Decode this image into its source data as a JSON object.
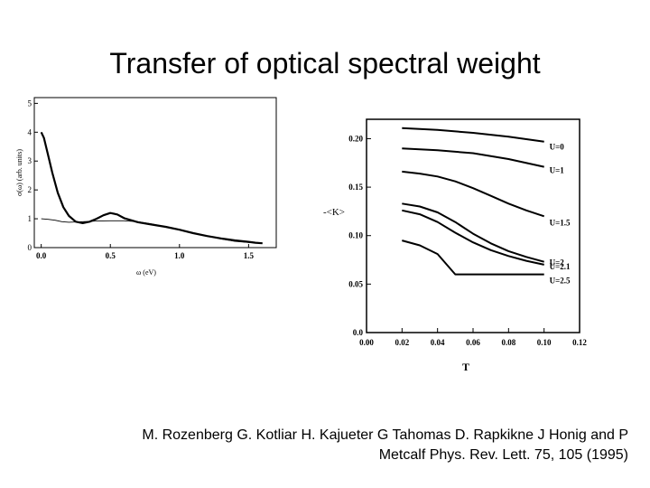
{
  "slide": {
    "title": "Transfer of optical  spectral weight",
    "citation_line1": "M. Rozenberg G. Kotliar H. Kajueter G Tahomas D. Rapkikne J Honig and P",
    "citation_line2": "Metcalf Phys. Rev. Lett. 75, 105 (1995)"
  },
  "chart_data": [
    {
      "type": "line",
      "title": "",
      "xlabel": "ω (eV)",
      "ylabel": "σ(ω) (arb. units)",
      "xlim": [
        -0.05,
        1.7
      ],
      "ylim": [
        0,
        5.2
      ],
      "x_ticks": [
        0.0,
        0.5,
        1.0,
        1.5
      ],
      "x_tick_labels": [
        "0.0",
        "0.5",
        "1.0",
        "1.5"
      ],
      "y_ticks": [
        0,
        1,
        2,
        3,
        4,
        5
      ],
      "y_tick_labels": [
        "0",
        "1",
        "2",
        "3",
        "4",
        "5"
      ],
      "grid": false,
      "series": [
        {
          "style": "thick",
          "x": [
            0.0,
            0.02,
            0.05,
            0.08,
            0.12,
            0.16,
            0.2,
            0.25,
            0.3,
            0.35,
            0.4,
            0.45,
            0.5,
            0.55,
            0.6,
            0.7,
            0.8,
            0.9,
            1.0,
            1.1,
            1.2,
            1.3,
            1.4,
            1.5,
            1.55,
            1.6
          ],
          "y": [
            4.0,
            3.8,
            3.2,
            2.6,
            1.9,
            1.4,
            1.1,
            0.9,
            0.85,
            0.9,
            1.0,
            1.12,
            1.2,
            1.15,
            1.02,
            0.88,
            0.8,
            0.72,
            0.62,
            0.5,
            0.4,
            0.32,
            0.25,
            0.2,
            0.17,
            0.15
          ]
        },
        {
          "style": "thin",
          "x": [
            0.0,
            0.05,
            0.1,
            0.15,
            0.2,
            0.3,
            0.4,
            0.5,
            0.6,
            0.7,
            0.8,
            0.9,
            1.0,
            1.1,
            1.2,
            1.3,
            1.4,
            1.5,
            1.6
          ],
          "y": [
            1.0,
            0.98,
            0.95,
            0.9,
            0.88,
            0.9,
            0.92,
            0.93,
            0.93,
            0.9,
            0.82,
            0.72,
            0.62,
            0.5,
            0.4,
            0.3,
            0.22,
            0.18,
            0.15
          ]
        }
      ]
    },
    {
      "type": "line",
      "title": "",
      "xlabel": "T",
      "ylabel": "-<K>",
      "xlim": [
        0.0,
        0.12
      ],
      "ylim": [
        0.0,
        0.22
      ],
      "x_ticks": [
        0.0,
        0.02,
        0.04,
        0.06,
        0.08,
        0.1,
        0.12
      ],
      "x_tick_labels": [
        "0.00",
        "0.02",
        "0.04",
        "0.06",
        "0.08",
        "0.10",
        "0.12"
      ],
      "y_ticks": [
        0.0,
        0.05,
        0.1,
        0.15,
        0.2
      ],
      "y_tick_labels": [
        "0.0",
        "0.05",
        "0.10",
        "0.15",
        "0.20"
      ],
      "grid": false,
      "series": [
        {
          "name": "U=0",
          "x": [
            0.02,
            0.04,
            0.06,
            0.08,
            0.1
          ],
          "y": [
            0.211,
            0.209,
            0.206,
            0.202,
            0.197
          ]
        },
        {
          "name": "U=1",
          "x": [
            0.02,
            0.04,
            0.06,
            0.08,
            0.1
          ],
          "y": [
            0.19,
            0.188,
            0.185,
            0.179,
            0.171
          ]
        },
        {
          "name": "U=1.5",
          "x": [
            0.02,
            0.03,
            0.04,
            0.05,
            0.06,
            0.07,
            0.08,
            0.09,
            0.1
          ],
          "y": [
            0.166,
            0.164,
            0.161,
            0.156,
            0.149,
            0.141,
            0.133,
            0.126,
            0.12
          ]
        },
        {
          "name": "U=2",
          "x": [
            0.02,
            0.03,
            0.04,
            0.05,
            0.06,
            0.07,
            0.08,
            0.09,
            0.1
          ],
          "y": [
            0.133,
            0.13,
            0.124,
            0.114,
            0.102,
            0.092,
            0.084,
            0.078,
            0.073
          ]
        },
        {
          "name": "U=2.1",
          "x": [
            0.02,
            0.03,
            0.04,
            0.05,
            0.06,
            0.07,
            0.08,
            0.09,
            0.1
          ],
          "y": [
            0.126,
            0.122,
            0.114,
            0.103,
            0.093,
            0.085,
            0.079,
            0.074,
            0.07
          ]
        },
        {
          "name": "U=2.5",
          "x": [
            0.02,
            0.03,
            0.04,
            0.05,
            0.06,
            0.07,
            0.08,
            0.09,
            0.1
          ],
          "y": [
            0.095,
            0.09,
            0.081,
            0.06,
            0.06,
            0.06,
            0.06,
            0.06,
            0.06
          ]
        }
      ]
    }
  ]
}
